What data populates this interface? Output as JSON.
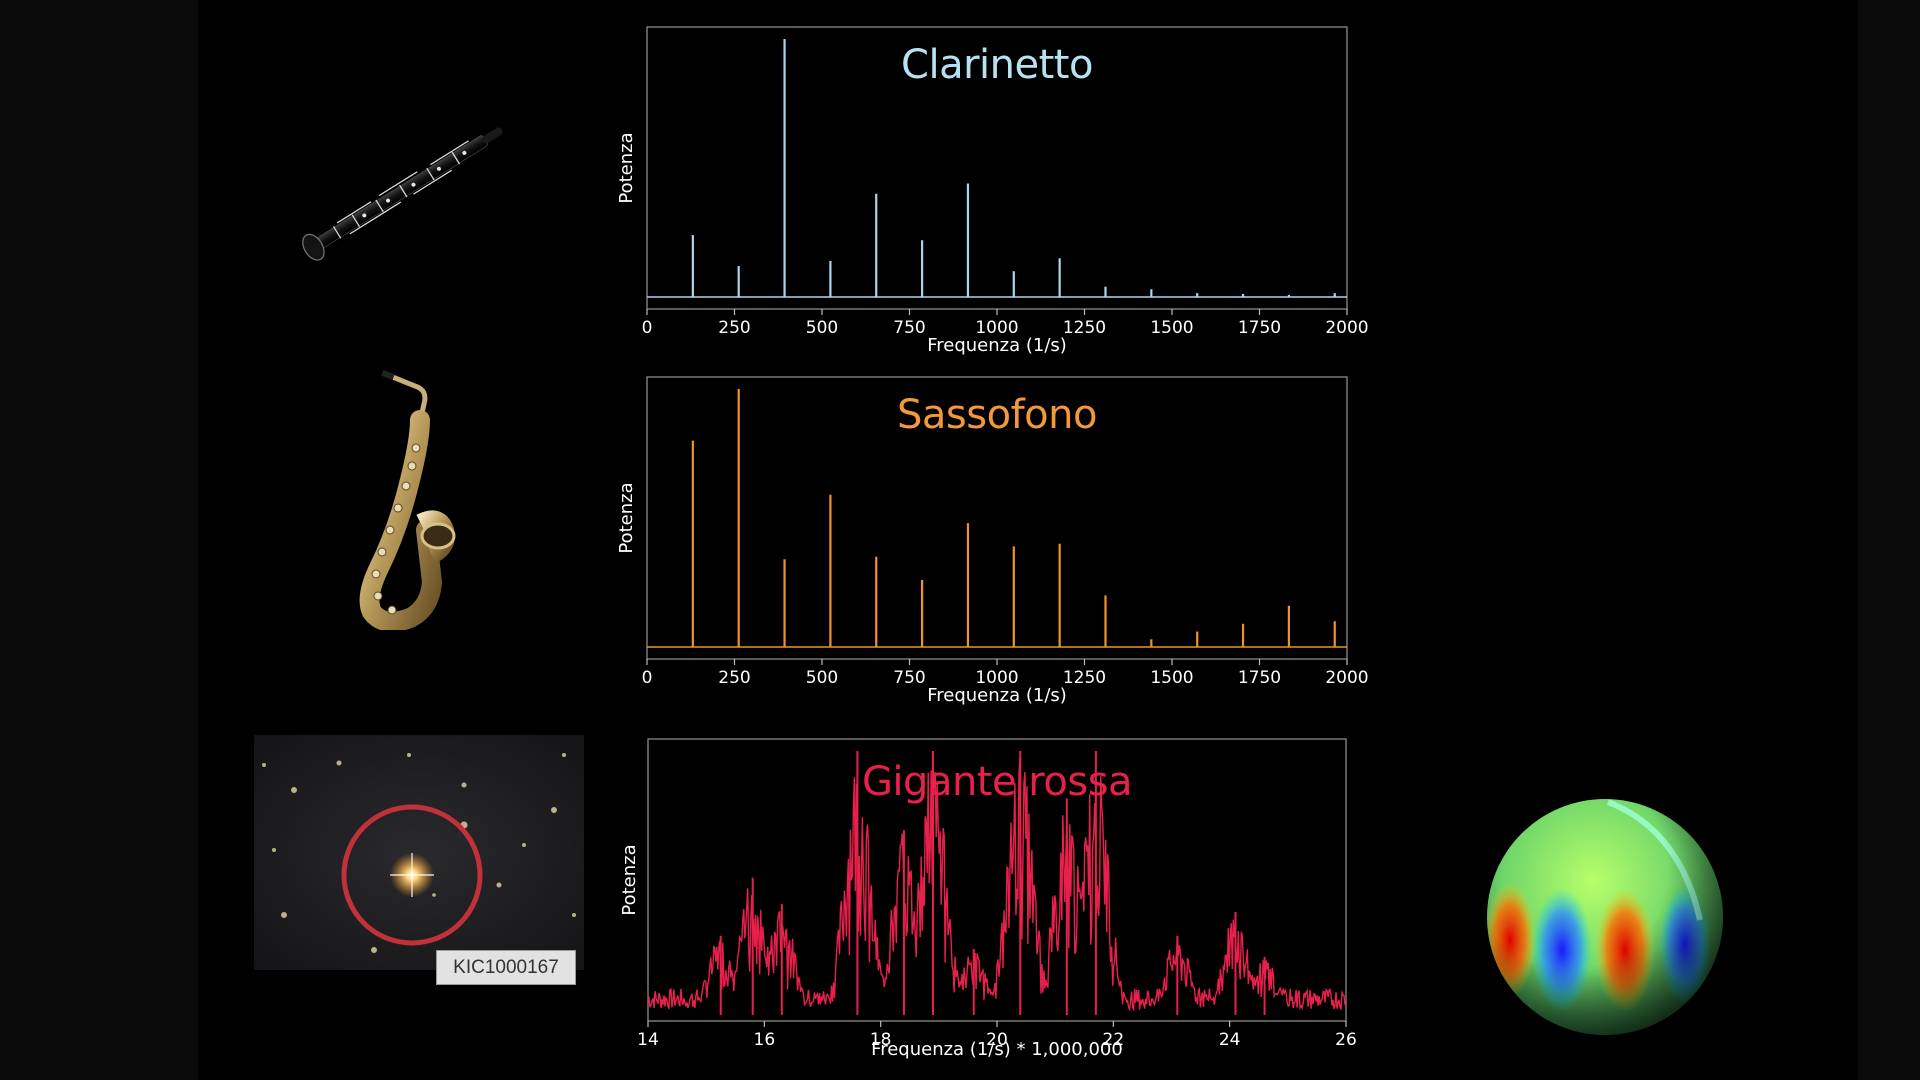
{
  "chart_data": [
    {
      "type": "line",
      "title": "Clarinetto",
      "xlabel": "Frequenza (1/s)",
      "ylabel": "Potenza",
      "xlim": [
        0,
        2000
      ],
      "xticks": [
        0,
        250,
        500,
        750,
        1000,
        1250,
        1500,
        1750,
        2000
      ],
      "ylim": [
        0,
        1
      ],
      "color": "#a8d8ec",
      "title_color": "#b6e2f2",
      "series": [
        {
          "x": [
            131,
            262,
            393,
            524,
            655,
            786,
            917,
            1048,
            1179,
            1310,
            1441,
            1572,
            1703,
            1834,
            1965
          ],
          "values": [
            0.24,
            0.12,
            1.0,
            0.14,
            0.4,
            0.22,
            0.44,
            0.1,
            0.15,
            0.04,
            0.03,
            0.015,
            0.012,
            0.008,
            0.015
          ]
        }
      ]
    },
    {
      "type": "line",
      "title": "Sassofono",
      "xlabel": "Frequenza (1/s)",
      "ylabel": "Potenza",
      "xlim": [
        0,
        2000
      ],
      "xticks": [
        0,
        250,
        500,
        750,
        1000,
        1250,
        1500,
        1750,
        2000
      ],
      "ylim": [
        0,
        1
      ],
      "color": "#f0932d",
      "title_color": "#f3993a",
      "series": [
        {
          "x": [
            131,
            262,
            393,
            524,
            655,
            786,
            917,
            1048,
            1179,
            1310,
            1441,
            1572,
            1703,
            1834,
            1965
          ],
          "values": [
            0.8,
            1.0,
            0.34,
            0.59,
            0.35,
            0.26,
            0.48,
            0.39,
            0.4,
            0.2,
            0.03,
            0.06,
            0.09,
            0.16,
            0.1
          ]
        }
      ]
    },
    {
      "type": "line",
      "title": "Gigante rossa",
      "xlabel": "Frequenza (1/s) * 1,000,000",
      "ylabel": "Potenza",
      "xlim": [
        14,
        26
      ],
      "xticks": [
        14,
        16,
        18,
        20,
        22,
        24,
        26
      ],
      "ylim": [
        0,
        1
      ],
      "color": "#e8204c",
      "title_color": "#e8204c",
      "peaks": [
        {
          "x": 15.25,
          "value": 0.3
        },
        {
          "x": 15.8,
          "value": 0.52
        },
        {
          "x": 16.3,
          "value": 0.42
        },
        {
          "x": 17.6,
          "value": 1.0
        },
        {
          "x": 18.4,
          "value": 0.7
        },
        {
          "x": 18.9,
          "value": 1.0
        },
        {
          "x": 19.6,
          "value": 0.25
        },
        {
          "x": 20.4,
          "value": 1.0
        },
        {
          "x": 21.2,
          "value": 0.82
        },
        {
          "x": 21.7,
          "value": 1.0
        },
        {
          "x": 23.1,
          "value": 0.3
        },
        {
          "x": 24.1,
          "value": 0.39
        },
        {
          "x": 24.6,
          "value": 0.22
        }
      ]
    }
  ],
  "star_label": "KIC1000167",
  "colors": {
    "clarinet": "#a8d8ec",
    "sax": "#f0932d",
    "giant": "#e8204c",
    "circle": "#c0313a"
  },
  "images": [
    "clarinet-picture",
    "saxophone-picture",
    "star-field-picture",
    "star-oscillation-sphere"
  ]
}
